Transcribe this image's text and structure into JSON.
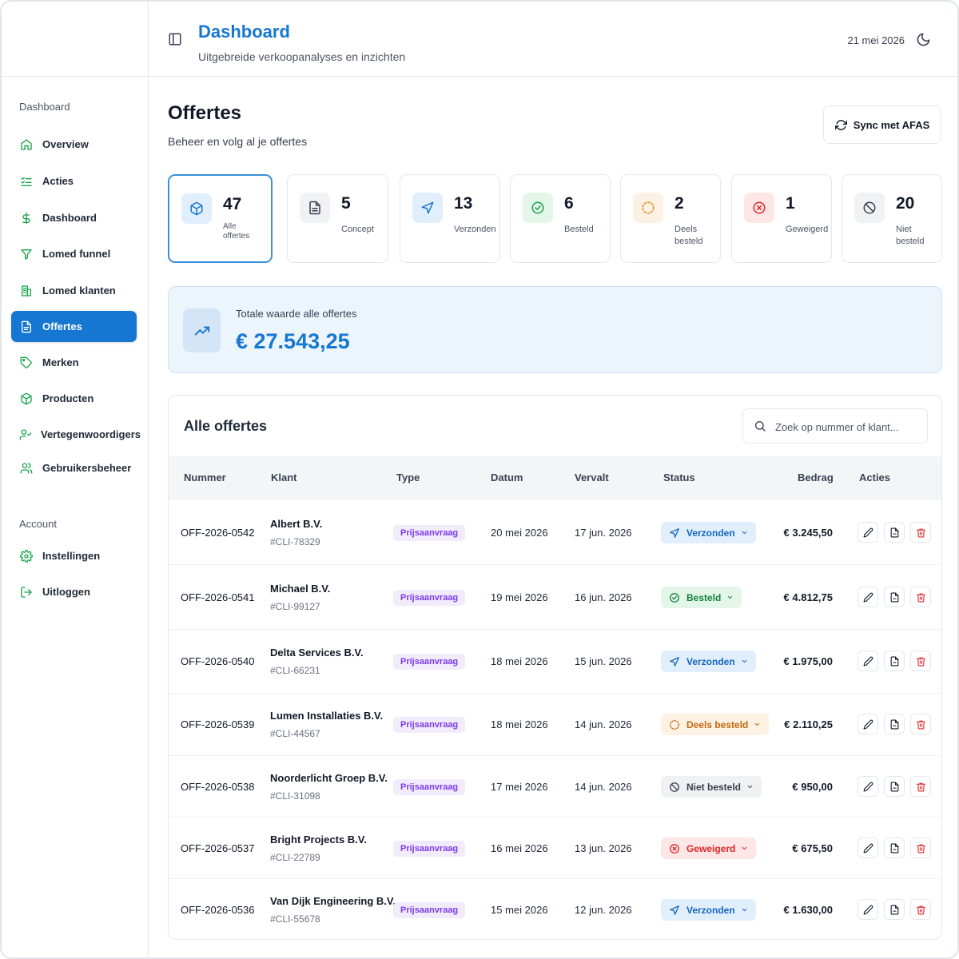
{
  "header": {
    "title": "Dashboard",
    "subtitle": "Uitgebreide verkoopanalyses en inzichten",
    "date": "21 mei 2026"
  },
  "sidebar": {
    "section_main": "Dashboard",
    "items": [
      {
        "label": "Overview",
        "icon": "home-icon"
      },
      {
        "label": "Acties",
        "icon": "list-check-icon"
      },
      {
        "label": "Dashboard",
        "icon": "dollar-icon"
      },
      {
        "label": "Lomed funnel",
        "icon": "funnel-icon"
      },
      {
        "label": "Lomed klanten",
        "icon": "building-icon"
      },
      {
        "label": "Offertes",
        "icon": "document-icon",
        "active": true
      },
      {
        "label": "Merken",
        "icon": "tag-icon"
      },
      {
        "label": "Producten",
        "icon": "package-icon"
      },
      {
        "label": "Vertegenwoordigers",
        "icon": "user-check-icon"
      },
      {
        "label": "Gebruikersbeheer",
        "icon": "users-icon"
      }
    ],
    "section_account": "Account",
    "account_items": [
      {
        "label": "Instellingen",
        "icon": "gear-icon"
      },
      {
        "label": "Uitloggen",
        "icon": "logout-icon"
      }
    ]
  },
  "page": {
    "title": "Offertes",
    "subtitle": "Beheer en volg al je offertes",
    "sync_label": "Sync met AFAS"
  },
  "stats": [
    {
      "value": "47",
      "label": "Alle offertes",
      "icon": "cube-icon"
    },
    {
      "value": "5",
      "label": "Concept",
      "icon": "file-icon"
    },
    {
      "value": "13",
      "label": "Verzonden",
      "icon": "send-icon"
    },
    {
      "value": "6",
      "label": "Besteld",
      "icon": "check-circle-icon"
    },
    {
      "value": "2",
      "label": "Deels besteld",
      "icon": "dashed-circle-icon"
    },
    {
      "value": "1",
      "label": "Geweigerd",
      "icon": "x-circle-icon"
    },
    {
      "value": "20",
      "label": "Niet besteld",
      "icon": "ban-icon"
    }
  ],
  "total": {
    "label": "Totale waarde alle offertes",
    "value": "€ 27.543,25"
  },
  "table": {
    "title": "Alle offertes",
    "search_placeholder": "Zoek op nummer of klant...",
    "columns": [
      "Nummer",
      "Klant",
      "Type",
      "Datum",
      "Vervalt",
      "Status",
      "Bedrag",
      "Acties"
    ],
    "rows": [
      {
        "nummer": "OFF-2026-0542",
        "klant": "Albert B.V.",
        "klant_id": "#CLI-78329",
        "type": "Prijsaanvraag",
        "datum": "20 mei 2026",
        "vervalt": "17 jun. 2026",
        "status": "Verzonden",
        "bedrag": "€ 3.245,50"
      },
      {
        "nummer": "OFF-2026-0541",
        "klant": "Michael B.V.",
        "klant_id": "#CLI-99127",
        "type": "Prijsaanvraag",
        "datum": "19 mei 2026",
        "vervalt": "16 jun. 2026",
        "status": "Besteld",
        "bedrag": "€ 4.812,75"
      },
      {
        "nummer": "OFF-2026-0540",
        "klant": "Delta Services B.V.",
        "klant_id": "#CLI-66231",
        "type": "Prijsaanvraag",
        "datum": "18 mei 2026",
        "vervalt": "15 jun. 2026",
        "status": "Verzonden",
        "bedrag": "€ 1.975,00"
      },
      {
        "nummer": "OFF-2026-0539",
        "klant": "Lumen Installaties B.V.",
        "klant_id": "#CLI-44567",
        "type": "Prijsaanvraag",
        "datum": "18 mei 2026",
        "vervalt": "14 jun. 2026",
        "status": "Deels besteld",
        "bedrag": "€ 2.110,25"
      },
      {
        "nummer": "OFF-2026-0538",
        "klant": "Noorderlicht Groep B.V.",
        "klant_id": "#CLI-31098",
        "type": "Prijsaanvraag",
        "datum": "17 mei 2026",
        "vervalt": "14 jun. 2026",
        "status": "Niet besteld",
        "bedrag": "€ 950,00"
      },
      {
        "nummer": "OFF-2026-0537",
        "klant": "Bright Projects B.V.",
        "klant_id": "#CLI-22789",
        "type": "Prijsaanvraag",
        "datum": "16 mei 2026",
        "vervalt": "13 jun. 2026",
        "status": "Geweigerd",
        "bedrag": "€ 675,50"
      },
      {
        "nummer": "OFF-2026-0536",
        "klant": "Van Dijk Engineering B.V.",
        "klant_id": "#CLI-55678",
        "type": "Prijsaanvraag",
        "datum": "15 mei 2026",
        "vervalt": "12 jun. 2026",
        "status": "Verzonden",
        "bedrag": "€ 1.630,00"
      }
    ],
    "actions": [
      {
        "icon": "pencil-icon"
      },
      {
        "icon": "file-icon"
      },
      {
        "icon": "trash-icon"
      }
    ]
  },
  "colors": {
    "brand": "#1677d2",
    "sent": "#1667c0",
    "ordered": "#15803d",
    "partial": "#c2680d",
    "rejected": "#dc2626",
    "type": "#7c3aed"
  }
}
